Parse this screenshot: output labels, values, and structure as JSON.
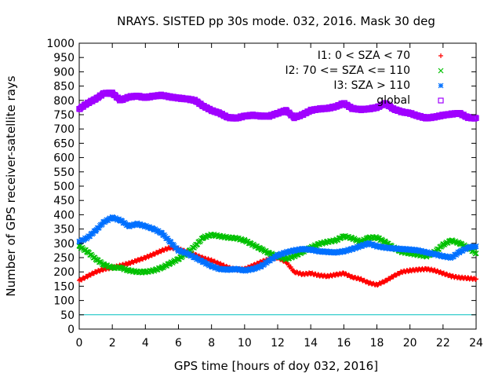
{
  "chart_data": {
    "type": "scatter",
    "title": "NRAYS. SISTED pp 30s mode. 032, 2016. Mask 30 deg",
    "xlabel": "GPS time [hours of doy 032, 2016]",
    "ylabel": "Number of GPS receiver-satellite rays",
    "xlim": [
      0,
      24
    ],
    "ylim": [
      0,
      1000
    ],
    "xticks": [
      0,
      2,
      4,
      6,
      8,
      10,
      12,
      14,
      16,
      18,
      20,
      22,
      24
    ],
    "yticks": [
      0,
      50,
      100,
      150,
      200,
      250,
      300,
      350,
      400,
      450,
      500,
      550,
      600,
      650,
      700,
      750,
      800,
      850,
      900,
      950,
      1000
    ],
    "grid": false,
    "legend_position": "top-right",
    "threshold_line": {
      "y": 50,
      "color": "#00bfbf"
    },
    "series": [
      {
        "name": "I1: 0 < SZA < 70",
        "marker": "+",
        "color": "#ff0000",
        "x": [
          0,
          0.5,
          1,
          1.5,
          2,
          2.5,
          3,
          3.5,
          4,
          4.5,
          5,
          5.5,
          6,
          6.5,
          7,
          7.5,
          8,
          8.5,
          9,
          9.5,
          10,
          10.5,
          11,
          11.5,
          12,
          12.5,
          13,
          13.5,
          14,
          14.5,
          15,
          15.5,
          16,
          16.5,
          17,
          17.5,
          18,
          18.5,
          19,
          19.5,
          20,
          20.5,
          21,
          21.5,
          22,
          22.5,
          23,
          23.5,
          24
        ],
        "y": [
          170,
          185,
          200,
          210,
          215,
          222,
          230,
          240,
          250,
          262,
          275,
          285,
          280,
          270,
          260,
          248,
          240,
          228,
          215,
          208,
          210,
          222,
          235,
          245,
          250,
          235,
          200,
          192,
          195,
          188,
          185,
          190,
          195,
          182,
          175,
          162,
          155,
          168,
          185,
          200,
          205,
          208,
          210,
          205,
          195,
          185,
          180,
          178,
          175
        ]
      },
      {
        "name": "I2: 70 <= SZA <= 110",
        "marker": "x",
        "color": "#00c000",
        "x": [
          0,
          0.5,
          1,
          1.5,
          2,
          2.5,
          3,
          3.5,
          4,
          4.5,
          5,
          5.5,
          6,
          6.5,
          7,
          7.5,
          8,
          8.5,
          9,
          9.5,
          10,
          10.5,
          11,
          11.5,
          12,
          12.5,
          13,
          13.5,
          14,
          14.5,
          15,
          15.5,
          16,
          16.5,
          17,
          17.5,
          18,
          18.5,
          19,
          19.5,
          20,
          20.5,
          21,
          21.5,
          22,
          22.5,
          23,
          23.5,
          24
        ],
        "y": [
          290,
          270,
          245,
          225,
          215,
          215,
          205,
          200,
          200,
          205,
          215,
          230,
          245,
          265,
          290,
          320,
          330,
          325,
          320,
          318,
          310,
          295,
          280,
          265,
          255,
          245,
          255,
          270,
          285,
          298,
          305,
          310,
          325,
          318,
          305,
          320,
          320,
          305,
          285,
          270,
          265,
          260,
          255,
          270,
          295,
          310,
          300,
          285,
          265
        ]
      },
      {
        "name": "I3: SZA > 110",
        "marker": "*",
        "color": "#0070ff",
        "x": [
          0,
          0.5,
          1,
          1.5,
          2,
          2.5,
          3,
          3.5,
          4,
          4.5,
          5,
          5.5,
          6,
          6.5,
          7,
          7.5,
          8,
          8.5,
          9,
          9.5,
          10,
          10.5,
          11,
          11.5,
          12,
          12.5,
          13,
          13.5,
          14,
          14.5,
          15,
          15.5,
          16,
          16.5,
          17,
          17.5,
          18,
          18.5,
          19,
          19.5,
          20,
          20.5,
          21,
          21.5,
          22,
          22.5,
          23,
          23.5,
          24
        ],
        "y": [
          305,
          320,
          345,
          375,
          390,
          380,
          360,
          368,
          360,
          350,
          335,
          305,
          275,
          265,
          250,
          235,
          220,
          210,
          208,
          210,
          205,
          210,
          220,
          240,
          258,
          268,
          275,
          280,
          278,
          272,
          270,
          268,
          272,
          280,
          290,
          300,
          290,
          285,
          282,
          280,
          278,
          275,
          268,
          262,
          255,
          250,
          270,
          285,
          290
        ]
      },
      {
        "name": "global",
        "marker": "square",
        "color": "#a000ff",
        "x": [
          0,
          0.5,
          1,
          1.5,
          2,
          2.5,
          3,
          3.5,
          4,
          4.5,
          5,
          5.5,
          6,
          6.5,
          7,
          7.5,
          8,
          8.5,
          9,
          9.5,
          10,
          10.5,
          11,
          11.5,
          12,
          12.5,
          13,
          13.5,
          14,
          14.5,
          15,
          15.5,
          16,
          16.5,
          17,
          17.5,
          18,
          18.5,
          19,
          19.5,
          20,
          20.5,
          21,
          21.5,
          22,
          22.5,
          23,
          23.5,
          24
        ],
        "y": [
          770,
          790,
          805,
          825,
          825,
          800,
          812,
          815,
          810,
          815,
          818,
          812,
          808,
          805,
          800,
          780,
          765,
          755,
          740,
          738,
          745,
          748,
          745,
          745,
          755,
          765,
          740,
          750,
          765,
          770,
          772,
          778,
          790,
          772,
          768,
          770,
          775,
          790,
          770,
          760,
          755,
          745,
          738,
          742,
          748,
          752,
          755,
          740,
          738
        ]
      }
    ]
  }
}
